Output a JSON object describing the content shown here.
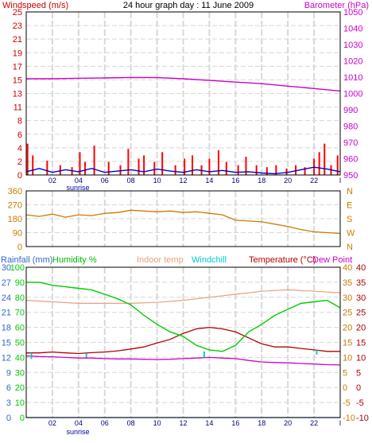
{
  "colors": {
    "wind": "#cc0000",
    "baro": "#cc00cc",
    "gust": "#ff0000",
    "avg_wind": "#0000cc",
    "direction": "#cc7a00",
    "rain": "#3366cc",
    "humidity": "#00cc00",
    "indoor": "#e8a080",
    "windchill": "#00cccc",
    "temperature": "#b30000",
    "dewpoint": "#cc00cc",
    "grid": "#d8d8d8",
    "frame": "#000000",
    "right_temp_axis": "#cc7a00"
  },
  "chart_data": [
    {
      "type": "line",
      "title": "24 hour graph day : 11 June 2009",
      "left_label": "Windspeed (m/s)",
      "right_label": "Barometer (hPa)",
      "x_ticks": [
        "02",
        "04",
        "06",
        "08",
        "10",
        "12",
        "14",
        "16",
        "18",
        "20",
        "22",
        "I"
      ],
      "sunrise_label": "sunrise",
      "left_ticks": [
        "0",
        "2",
        "4",
        "6",
        "8",
        "11",
        "13",
        "15",
        "17",
        "19",
        "21",
        "23",
        "25"
      ],
      "right_ticks": [
        "950",
        "960",
        "970",
        "980",
        "990",
        "1000",
        "1010",
        "1020",
        "1030",
        "1040",
        "1050"
      ],
      "ylim_left": [
        0,
        25
      ],
      "ylim_right": [
        950,
        1050
      ],
      "series": [
        {
          "name": "Barometer (hPa)",
          "x": [
            0,
            2,
            4,
            6,
            8,
            10,
            12,
            14,
            16,
            18,
            20,
            22,
            24
          ],
          "values": [
            1009,
            1009,
            1009.3,
            1009.5,
            1009.8,
            1009.7,
            1009,
            1008,
            1007,
            1006,
            1004.5,
            1003,
            1001.5
          ]
        },
        {
          "name": "Average wind",
          "x": [
            0,
            1,
            2,
            3,
            4,
            5,
            6,
            7,
            8,
            9,
            10,
            11,
            12,
            13,
            14,
            15,
            16,
            17,
            18,
            19,
            20,
            21,
            22,
            23,
            24
          ],
          "values": [
            0.5,
            1,
            0.4,
            0.8,
            0.5,
            1,
            0.4,
            0.6,
            0.8,
            0.5,
            0.9,
            0.6,
            0.4,
            0.8,
            0.5,
            0.7,
            0.4,
            0.5,
            0.3,
            0.2,
            0.4,
            0.8,
            1.2,
            0.9,
            0.5
          ]
        },
        {
          "name": "Gusts",
          "x": [
            0.1,
            0.5,
            1.6,
            2.6,
            3.5,
            4.1,
            4.5,
            5.2,
            6.3,
            7.2,
            7.8,
            8.6,
            9.0,
            9.8,
            10.4,
            11.4,
            12.1,
            12.7,
            13.4,
            14.0,
            14.7,
            15.3,
            16.2,
            16.8,
            17.6,
            18.4,
            19.1,
            19.9,
            20.6,
            21.3,
            22.0,
            22.4,
            22.8,
            23.3,
            23.8
          ],
          "values": [
            4.8,
            3,
            2.2,
            1.5,
            1.2,
            3.5,
            2,
            4.5,
            2,
            1.5,
            4,
            2.5,
            3,
            2,
            3.5,
            1.5,
            2.5,
            3,
            1.5,
            2.5,
            3.8,
            2,
            1.5,
            2.8,
            1.5,
            1.2,
            1.5,
            1,
            1.5,
            1.2,
            2.5,
            3.5,
            4.8,
            1.5,
            3
          ]
        }
      ]
    },
    {
      "type": "line",
      "left_ticks": [
        "0",
        "90",
        "180",
        "270",
        "360"
      ],
      "right_ticks": [
        "N",
        "W",
        "S",
        "E",
        "N"
      ],
      "ylim": [
        0,
        360
      ],
      "series": [
        {
          "name": "Wind direction",
          "x": [
            0,
            1,
            2,
            3,
            4,
            5,
            6,
            7,
            8,
            9,
            10,
            11,
            12,
            13,
            14,
            15,
            16,
            17,
            18,
            19,
            20,
            21,
            22,
            23,
            24
          ],
          "values": [
            205,
            195,
            210,
            190,
            205,
            200,
            215,
            220,
            235,
            230,
            225,
            230,
            220,
            225,
            215,
            205,
            170,
            165,
            160,
            145,
            130,
            110,
            95,
            90,
            85
          ]
        }
      ]
    },
    {
      "type": "line",
      "legend_labels": [
        "Rainfall (mm)",
        "Humidity %",
        "Indoor temp",
        "Windchill",
        "Temperature (°C)",
        "Dew Point"
      ],
      "x_ticks": [
        "02",
        "04",
        "06",
        "08",
        "10",
        "12",
        "14",
        "16",
        "18",
        "20",
        "22",
        "I"
      ],
      "sunrise_label": "sunrise",
      "rain_ticks": [
        "0",
        "3",
        "6",
        "9",
        "12",
        "15",
        "18",
        "21",
        "24",
        "27",
        "30"
      ],
      "humidity_ticks": [
        "0",
        "10",
        "20",
        "30",
        "40",
        "50",
        "60",
        "70",
        "80",
        "90",
        "100"
      ],
      "temp_ticks": [
        "-10",
        "-5",
        "0",
        "5",
        "10",
        "15",
        "20",
        "25",
        "30",
        "35",
        "40"
      ],
      "ylim_rain": [
        0,
        30
      ],
      "ylim_humidity": [
        0,
        100
      ],
      "ylim_temp": [
        -10,
        40
      ],
      "series": [
        {
          "name": "Humidity %",
          "x": [
            0,
            1,
            2,
            3,
            4,
            5,
            6,
            7,
            8,
            9,
            10,
            11,
            12,
            13,
            14,
            15,
            16,
            17,
            18,
            19,
            20,
            21,
            22,
            23,
            24
          ],
          "values": [
            90,
            90,
            88,
            87,
            86,
            85,
            82,
            79,
            75,
            68,
            62,
            57,
            54,
            48,
            45,
            44,
            48,
            57,
            62,
            68,
            72,
            76,
            77,
            78,
            73
          ]
        },
        {
          "name": "Indoor temp",
          "x": [
            0,
            2,
            4,
            6,
            8,
            10,
            12,
            14,
            16,
            18,
            20,
            22,
            24
          ],
          "values": [
            29,
            28.5,
            28,
            28,
            28,
            28.3,
            29,
            30,
            31,
            32,
            32.5,
            32,
            31.5
          ]
        },
        {
          "name": "Temperature (°C)",
          "x": [
            0,
            1,
            2,
            3,
            4,
            5,
            6,
            7,
            8,
            9,
            10,
            11,
            12,
            13,
            14,
            15,
            16,
            17,
            18,
            19,
            20,
            21,
            22,
            23,
            24
          ],
          "values": [
            11.5,
            11.5,
            11.8,
            11.5,
            11.3,
            11.6,
            11.8,
            12.2,
            12.8,
            13.5,
            14.8,
            16,
            18,
            19.5,
            20,
            19.5,
            18.5,
            16.5,
            14.5,
            13.5,
            13.5,
            13,
            12.5,
            12,
            12
          ]
        },
        {
          "name": "Dew Point",
          "x": [
            0,
            1,
            2,
            3,
            4,
            5,
            6,
            7,
            8,
            9,
            10,
            11,
            12,
            13,
            14,
            15,
            16,
            17,
            18,
            19,
            20,
            21,
            22,
            23,
            24
          ],
          "values": [
            10.5,
            10.3,
            10.2,
            10,
            9.8,
            9.8,
            9.6,
            9.5,
            9.5,
            9.4,
            9.3,
            9.4,
            9.6,
            9.8,
            10,
            9.8,
            9.6,
            9,
            8.5,
            8.3,
            8.2,
            8,
            7.8,
            7.6,
            7.5
          ]
        },
        {
          "name": "Windchill",
          "x": [
            0.4,
            0.6,
            4.6,
            4.8,
            13.6,
            13.9,
            22.2,
            22.4
          ],
          "values": [
            11.5,
            9.5,
            11.4,
            10,
            12,
            10,
            12.5,
            11
          ]
        },
        {
          "name": "Rainfall (mm)",
          "x": [
            0,
            24
          ],
          "values": [
            0,
            0
          ]
        }
      ]
    }
  ]
}
